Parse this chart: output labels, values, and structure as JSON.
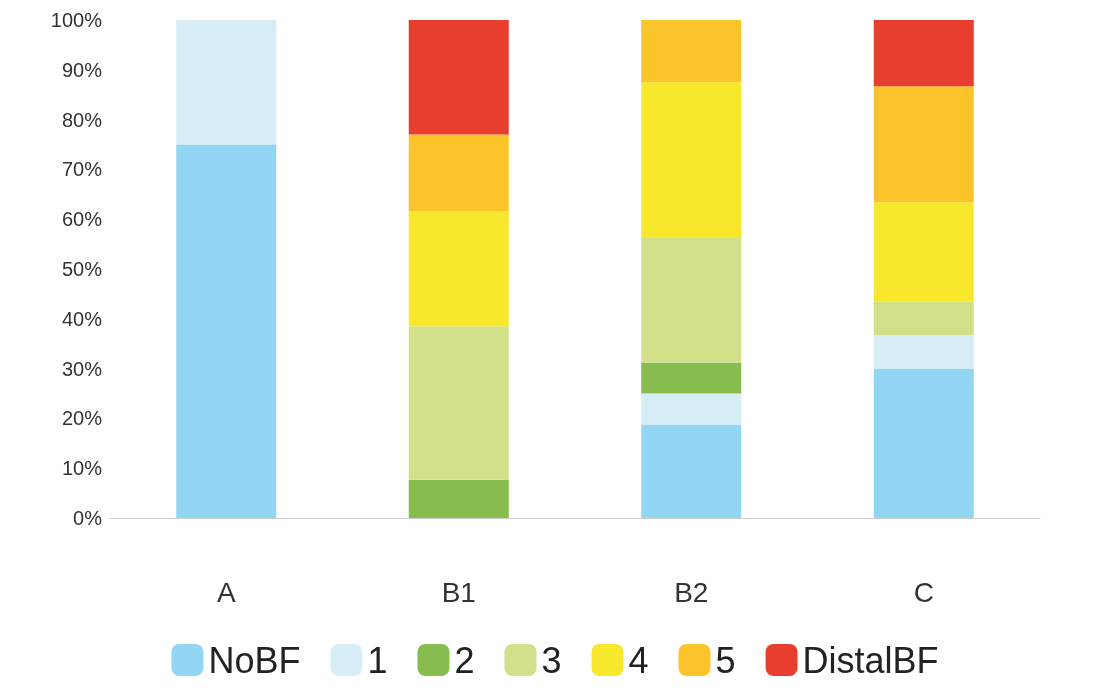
{
  "chart_data": {
    "type": "bar",
    "stacked": true,
    "categories": [
      "A",
      "B1",
      "B2",
      "C"
    ],
    "series": [
      {
        "name": "NoBF",
        "color": "#92d6f3",
        "values": [
          75,
          null,
          18.8,
          30
        ]
      },
      {
        "name": "1",
        "color": "#d8eef7",
        "values": [
          25,
          null,
          6.2,
          6.7
        ]
      },
      {
        "name": "2",
        "color": "#86bd4e",
        "values": [
          null,
          7.7,
          6.2,
          null
        ]
      },
      {
        "name": "3",
        "color": "#d3e08a",
        "values": [
          null,
          30.8,
          25,
          6.7
        ]
      },
      {
        "name": "4",
        "color": "#f8e82c",
        "values": [
          null,
          23.1,
          31.3,
          20
        ]
      },
      {
        "name": "5",
        "color": "#fbc42a",
        "values": [
          null,
          15.4,
          12.5,
          23.3
        ]
      },
      {
        "name": "DistalBF",
        "color": "#e83e30",
        "values": [
          null,
          23,
          null,
          13.3
        ]
      }
    ],
    "ylim": [
      0,
      100
    ],
    "yticks": [
      {
        "value": 0,
        "label": "0%"
      },
      {
        "value": 10,
        "label": "10%"
      },
      {
        "value": 20,
        "label": "20%"
      },
      {
        "value": 30,
        "label": "30%"
      },
      {
        "value": 40,
        "label": "40%"
      },
      {
        "value": 50,
        "label": "50%"
      },
      {
        "value": 60,
        "label": "60%"
      },
      {
        "value": 70,
        "label": "70%"
      },
      {
        "value": 80,
        "label": "80%"
      },
      {
        "value": 90,
        "label": "90%"
      },
      {
        "value": 100,
        "label": "100%"
      }
    ],
    "grid": false,
    "legend": "bottom"
  }
}
